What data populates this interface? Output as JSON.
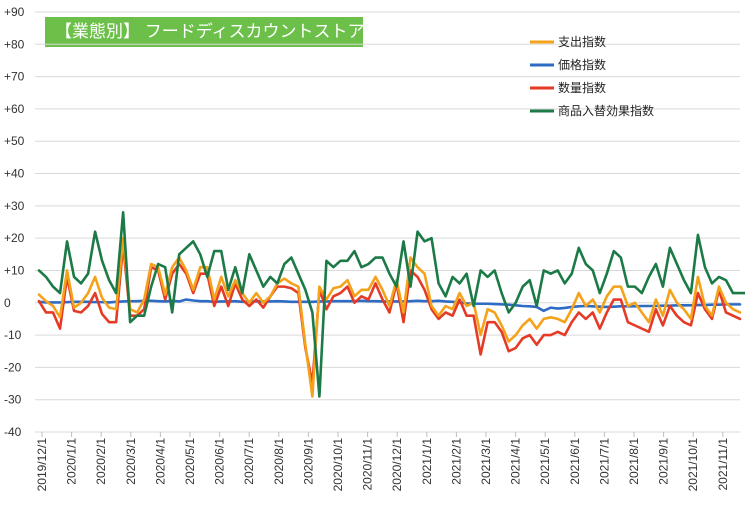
{
  "chart_data": {
    "type": "line",
    "title": "【業態別】 フードディスカウントストア",
    "ylim": [
      -40,
      90
    ],
    "yticks": [
      "+90",
      "+80",
      "+70",
      "+60",
      "+50",
      "+40",
      "+30",
      "+20",
      "+10",
      "0",
      "-10",
      "-20",
      "-30",
      "-40"
    ],
    "ytick_values": [
      90,
      80,
      70,
      60,
      50,
      40,
      30,
      20,
      10,
      0,
      -10,
      -20,
      -30,
      -40
    ],
    "x_tick_labels": [
      "2019/12/1",
      "2020/1/1",
      "2020/2/1",
      "2020/3/1",
      "2020/4/1",
      "2020/5/1",
      "2020/6/1",
      "2020/7/1",
      "2020/8/1",
      "2020/9/1",
      "2020/10/1",
      "2020/11/1",
      "2020/12/1",
      "2021/1/1",
      "2021/2/1",
      "2021/3/1",
      "2021/4/1",
      "2021/5/1",
      "2021/6/1",
      "2021/7/1",
      "2021/8/1",
      "2021/9/1",
      "2021/10/1",
      "2021/11/1"
    ],
    "grid": true,
    "legend_position": "top-right",
    "series": [
      {
        "name": "支出指数",
        "color": "#f5a21b",
        "values": [
          2.5,
          0.5,
          -1,
          -4.5,
          10,
          -1.5,
          0,
          3,
          8,
          1.5,
          -1.5,
          -2,
          20,
          -2,
          -3,
          1,
          12,
          11,
          2.5,
          11,
          14,
          10,
          4,
          11,
          11,
          1,
          8,
          2,
          7,
          3,
          0,
          3,
          0,
          2,
          6,
          7.5,
          6,
          5,
          -13,
          -29,
          5,
          1,
          4.5,
          5,
          7,
          2,
          4,
          4,
          8,
          4,
          -1,
          7,
          -3,
          14,
          11,
          9,
          -1,
          -4,
          -1,
          -2,
          3,
          -1,
          0,
          -10,
          -2,
          -3,
          -7,
          -12,
          -10,
          -7,
          -5,
          -8,
          -5,
          -4.5,
          -5,
          -6,
          -2,
          3,
          -1,
          1,
          -3,
          2,
          5,
          5,
          -1,
          0,
          -3,
          -6,
          1,
          -4,
          4,
          0,
          -2,
          -5,
          8,
          -1,
          -4,
          5,
          0,
          -2,
          -3
        ]
      },
      {
        "name": "価格指数",
        "color": "#2e6bc4",
        "values": [
          0.3,
          0.1,
          0.1,
          0.1,
          0.2,
          0.3,
          0.3,
          0.3,
          0.2,
          0.2,
          0.1,
          0.3,
          0.4,
          0.5,
          0.5,
          0.6,
          0.6,
          0.5,
          0.4,
          0.6,
          0.4,
          1,
          0.7,
          0.5,
          0.5,
          0.3,
          0.4,
          0.4,
          0.5,
          0.3,
          0.3,
          0.5,
          0.4,
          0.4,
          0.5,
          0.4,
          0.3,
          0.3,
          0.3,
          0.3,
          0.4,
          0.4,
          0.5,
          0.5,
          0.5,
          0.5,
          0.6,
          0.5,
          0.5,
          0.4,
          0.4,
          0.4,
          0.4,
          0.5,
          0.6,
          0.5,
          0.5,
          0.6,
          0.4,
          0.3,
          0.1,
          -0.2,
          -0.3,
          -0.3,
          -0.3,
          -0.4,
          -0.5,
          -0.6,
          -0.8,
          -1,
          -1.1,
          -1.3,
          -2.5,
          -1.5,
          -1.8,
          -1.6,
          -1.3,
          -1.1,
          -1,
          -1.1,
          -1.2,
          -1.3,
          -1.2,
          -1.1,
          -1.1,
          -1.1,
          -1,
          -1,
          -1,
          -0.9,
          -0.9,
          -0.8,
          -0.8,
          -0.8,
          -0.7,
          -0.7,
          -0.6,
          -0.6,
          -0.5,
          -0.5,
          -0.5
        ]
      },
      {
        "name": "数量指数",
        "color": "#e53b26",
        "values": [
          0.5,
          -3,
          -3,
          -8,
          8,
          -2.5,
          -3,
          -1,
          3,
          -3.5,
          -6,
          -6,
          18,
          -4,
          -4,
          -2,
          11,
          10,
          1,
          9,
          12,
          9,
          3,
          9,
          9,
          -1,
          5,
          -1,
          6,
          1,
          -1,
          1,
          -1.5,
          2,
          5,
          5,
          4.5,
          3,
          -14,
          -25,
          4,
          -2,
          2,
          3,
          5,
          0,
          2,
          1,
          6,
          1,
          -3,
          6,
          -6,
          10,
          8,
          4,
          -2,
          -5,
          -3,
          -4,
          1,
          -4,
          -4,
          -16,
          -6,
          -6,
          -9,
          -15,
          -14,
          -11,
          -10,
          -13,
          -10,
          -10,
          -9,
          -10,
          -6,
          -3,
          -5,
          -3,
          -8,
          -3,
          1,
          1,
          -6,
          -7,
          -8,
          -9,
          -2,
          -7,
          -1,
          -4,
          -6,
          -7,
          3,
          -2,
          -5,
          4,
          -3,
          -4,
          -5
        ]
      },
      {
        "name": "商品入替効果指数",
        "color": "#1c7a47",
        "values": [
          10,
          8,
          5,
          3,
          19,
          8,
          6,
          9,
          22,
          13,
          7,
          3,
          28,
          -6,
          -4,
          -4,
          5,
          12,
          11,
          -3,
          15,
          17,
          19,
          15,
          8,
          16,
          16,
          4,
          11,
          3,
          15,
          10,
          5,
          8,
          6,
          12,
          14,
          9,
          4,
          -3,
          -29,
          13,
          11,
          13,
          13,
          16,
          11,
          12,
          14,
          14,
          9,
          5,
          19,
          5,
          22,
          19,
          20,
          6,
          2,
          8,
          6,
          9,
          -1,
          10,
          8,
          10,
          3,
          -3,
          0,
          5,
          7,
          -1,
          10,
          9,
          10,
          6,
          9,
          17,
          12,
          10,
          3,
          9,
          16,
          14,
          5,
          5,
          3,
          8,
          12,
          5,
          17,
          12,
          7,
          3,
          21,
          11,
          6,
          8,
          7,
          3,
          3,
          3
        ]
      }
    ]
  }
}
